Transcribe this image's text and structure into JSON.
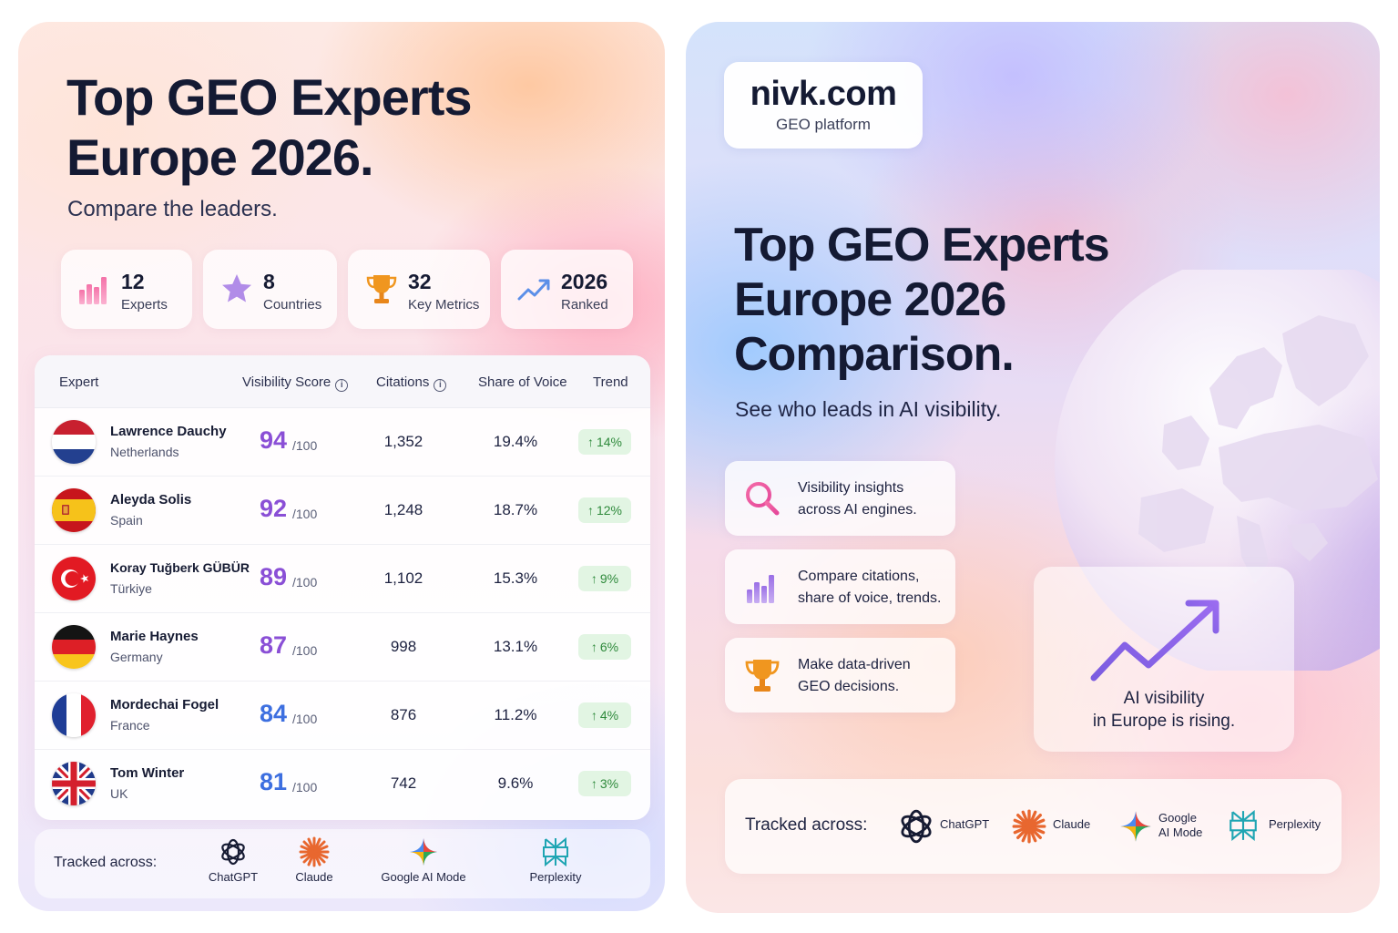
{
  "left": {
    "title_line1": "Top GEO Experts",
    "title_line2": "Europe 2026.",
    "subtitle": "Compare the leaders.",
    "stats": [
      {
        "value": "12",
        "label": "Experts",
        "icon": "bar-chart-icon"
      },
      {
        "value": "8",
        "label": "Countries",
        "icon": "star-icon"
      },
      {
        "value": "32",
        "label": "Key Metrics",
        "icon": "trophy-icon"
      },
      {
        "value": "2026",
        "label": "Ranked",
        "icon": "trend-up-icon"
      }
    ],
    "table": {
      "headers": {
        "expert": "Expert",
        "visibility": "Visibility Score",
        "citations": "Citations",
        "sov": "Share of Voice",
        "trend": "Trend"
      },
      "score_suffix": "/100",
      "rows": [
        {
          "name": "Lawrence Dauchy",
          "country": "Netherlands",
          "flag": "netherlands-flag",
          "score": "94",
          "citations": "1,352",
          "sov": "19.4%",
          "trend": "14%",
          "score_color": "#8a4fd6"
        },
        {
          "name": "Aleyda Solis",
          "country": "Spain",
          "flag": "spain-flag",
          "score": "92",
          "citations": "1,248",
          "sov": "18.7%",
          "trend": "12%",
          "score_color": "#8a4fd6"
        },
        {
          "name": "Koray Tuğberk GÜBÜR",
          "country": "Türkiye",
          "flag": "turkey-flag",
          "score": "89",
          "citations": "1,102",
          "sov": "15.3%",
          "trend": "9%",
          "score_color": "#8a4fd6"
        },
        {
          "name": "Marie Haynes",
          "country": "Germany",
          "flag": "germany-flag",
          "score": "87",
          "citations": "998",
          "sov": "13.1%",
          "trend": "6%",
          "score_color": "#8a4fd6"
        },
        {
          "name": "Mordechai Fogel",
          "country": "France",
          "flag": "france-flag",
          "score": "84",
          "citations": "876",
          "sov": "11.2%",
          "trend": "4%",
          "score_color": "#3d6fe0"
        },
        {
          "name": "Tom Winter",
          "country": "UK",
          "flag": "uk-flag",
          "score": "81",
          "citations": "742",
          "sov": "9.6%",
          "trend": "3%",
          "score_color": "#3d6fe0"
        }
      ]
    },
    "tracked": {
      "label": "Tracked across:",
      "tools": [
        "ChatGPT",
        "Claude",
        "Google AI Mode",
        "Perplexity"
      ]
    }
  },
  "right": {
    "logo": {
      "domain": "nivk.com",
      "tagline": "GEO platform"
    },
    "title_line1": "Top GEO Experts",
    "title_line2": "Europe 2026",
    "title_line3": "Comparison.",
    "subtitle": "See who leads in AI visibility.",
    "features": [
      {
        "line1": "Visibility insights",
        "line2": "across AI engines.",
        "icon": "search-icon"
      },
      {
        "line1": "Compare citations,",
        "line2": "share of voice, trends.",
        "icon": "bar-chart-icon"
      },
      {
        "line1": "Make data-driven",
        "line2": "GEO decisions.",
        "icon": "trophy-icon"
      }
    ],
    "rising": {
      "line1": "AI visibility",
      "line2": "in Europe is rising."
    },
    "tracked": {
      "label": "Tracked across:",
      "tools": [
        {
          "line1": "ChatGPT",
          "line2": ""
        },
        {
          "line1": "Claude",
          "line2": ""
        },
        {
          "line1": "Google",
          "line2": "AI Mode"
        },
        {
          "line1": "Perplexity",
          "line2": ""
        }
      ]
    }
  },
  "colors": {
    "accent_purple": "#8a4fd6",
    "accent_blue": "#3d6fe0",
    "trend_green": "#2f8a3c",
    "trend_bg": "#e2f5e3",
    "claude_orange": "#e8672f"
  }
}
